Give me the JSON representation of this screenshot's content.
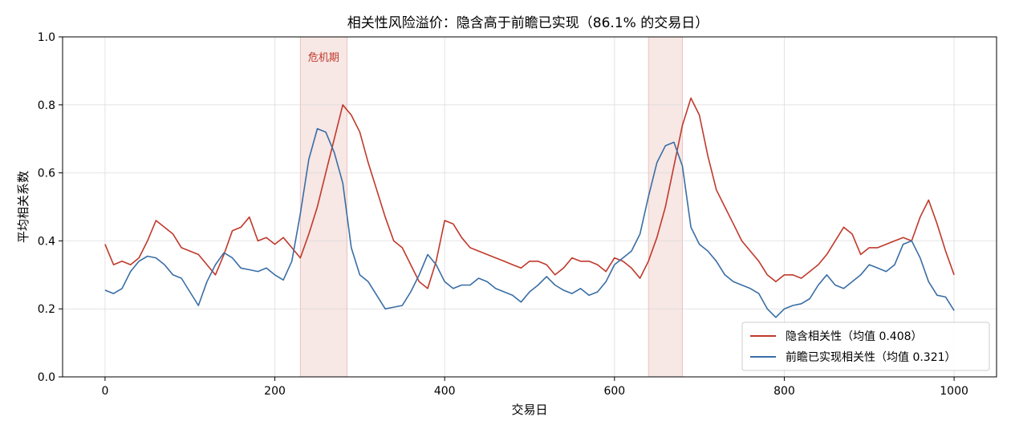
{
  "chart_data": {
    "type": "line",
    "title": "相关性风险溢价：隐含高于前瞻已实现（86.1% 的交易日）",
    "xlabel": "交易日",
    "ylabel": "平均相关系数",
    "xlim": [
      -50,
      1050
    ],
    "ylim": [
      0.0,
      1.0
    ],
    "xticks": [
      0,
      200,
      400,
      600,
      800,
      1000
    ],
    "xtick_labels": [
      "0",
      "200",
      "400",
      "600",
      "800",
      "1000"
    ],
    "yticks": [
      0.0,
      0.2,
      0.4,
      0.6,
      0.8,
      1.0
    ],
    "ytick_labels": [
      "0.0",
      "0.2",
      "0.4",
      "0.6",
      "0.8",
      "1.0"
    ],
    "grid": true,
    "legend_position": "lower-right",
    "shaded_regions": [
      {
        "x_start": 230,
        "x_end": 285,
        "label": "危机期",
        "color": "#c0392b"
      },
      {
        "x_start": 640,
        "x_end": 680,
        "label": "",
        "color": "#c0392b"
      }
    ],
    "series": [
      {
        "name": "隐含相关性（均值 0.408）",
        "color": "#c0392b",
        "x": [
          0,
          10,
          20,
          30,
          40,
          50,
          60,
          70,
          80,
          90,
          100,
          110,
          120,
          130,
          140,
          150,
          160,
          170,
          180,
          190,
          200,
          210,
          220,
          230,
          240,
          250,
          260,
          270,
          280,
          290,
          300,
          310,
          320,
          330,
          340,
          350,
          360,
          370,
          380,
          390,
          400,
          410,
          420,
          430,
          440,
          450,
          460,
          470,
          480,
          490,
          500,
          510,
          520,
          530,
          540,
          550,
          560,
          570,
          580,
          590,
          600,
          610,
          620,
          630,
          640,
          650,
          660,
          670,
          680,
          690,
          700,
          710,
          720,
          730,
          740,
          750,
          760,
          770,
          780,
          790,
          800,
          810,
          820,
          830,
          840,
          850,
          860,
          870,
          880,
          890,
          900,
          910,
          920,
          930,
          940,
          950,
          960,
          970,
          980,
          990,
          1000
        ],
        "values": [
          0.39,
          0.33,
          0.34,
          0.33,
          0.35,
          0.4,
          0.46,
          0.44,
          0.42,
          0.38,
          0.37,
          0.36,
          0.33,
          0.3,
          0.36,
          0.43,
          0.44,
          0.47,
          0.4,
          0.41,
          0.39,
          0.41,
          0.38,
          0.35,
          0.42,
          0.5,
          0.6,
          0.7,
          0.8,
          0.77,
          0.72,
          0.63,
          0.55,
          0.47,
          0.4,
          0.38,
          0.33,
          0.28,
          0.26,
          0.34,
          0.46,
          0.45,
          0.41,
          0.38,
          0.37,
          0.36,
          0.35,
          0.34,
          0.33,
          0.32,
          0.34,
          0.34,
          0.33,
          0.3,
          0.32,
          0.35,
          0.34,
          0.34,
          0.33,
          0.31,
          0.35,
          0.34,
          0.32,
          0.29,
          0.34,
          0.41,
          0.5,
          0.62,
          0.74,
          0.82,
          0.77,
          0.65,
          0.55,
          0.5,
          0.45,
          0.4,
          0.37,
          0.34,
          0.3,
          0.28,
          0.3,
          0.3,
          0.29,
          0.31,
          0.33,
          0.36,
          0.4,
          0.44,
          0.42,
          0.36,
          0.38,
          0.38,
          0.39,
          0.4,
          0.41,
          0.4,
          0.47,
          0.52,
          0.45,
          0.37,
          0.3
        ]
      },
      {
        "name": "前瞻已实现相关性（均值 0.321）",
        "color": "#3a6ea5",
        "x": [
          0,
          10,
          20,
          30,
          40,
          50,
          60,
          70,
          80,
          90,
          100,
          110,
          120,
          130,
          140,
          150,
          160,
          170,
          180,
          190,
          200,
          210,
          220,
          230,
          240,
          250,
          260,
          270,
          280,
          290,
          300,
          310,
          320,
          330,
          340,
          350,
          360,
          370,
          380,
          390,
          400,
          410,
          420,
          430,
          440,
          450,
          460,
          470,
          480,
          490,
          500,
          510,
          520,
          530,
          540,
          550,
          560,
          570,
          580,
          590,
          600,
          610,
          620,
          630,
          640,
          650,
          660,
          670,
          680,
          690,
          700,
          710,
          720,
          730,
          740,
          750,
          760,
          770,
          780,
          790,
          800,
          810,
          820,
          830,
          840,
          850,
          860,
          870,
          880,
          890,
          900,
          910,
          920,
          930,
          940,
          950,
          960,
          970,
          980,
          990,
          1000
        ],
        "values": [
          0.255,
          0.245,
          0.26,
          0.31,
          0.34,
          0.355,
          0.35,
          0.33,
          0.3,
          0.29,
          0.25,
          0.21,
          0.28,
          0.33,
          0.365,
          0.35,
          0.32,
          0.315,
          0.31,
          0.32,
          0.3,
          0.285,
          0.34,
          0.48,
          0.64,
          0.73,
          0.72,
          0.66,
          0.57,
          0.38,
          0.3,
          0.28,
          0.24,
          0.2,
          0.205,
          0.21,
          0.25,
          0.3,
          0.36,
          0.33,
          0.28,
          0.26,
          0.27,
          0.27,
          0.29,
          0.28,
          0.26,
          0.25,
          0.24,
          0.22,
          0.25,
          0.27,
          0.295,
          0.27,
          0.255,
          0.245,
          0.26,
          0.24,
          0.25,
          0.28,
          0.33,
          0.35,
          0.37,
          0.42,
          0.53,
          0.63,
          0.68,
          0.69,
          0.62,
          0.44,
          0.39,
          0.37,
          0.34,
          0.3,
          0.28,
          0.27,
          0.26,
          0.245,
          0.2,
          0.175,
          0.2,
          0.21,
          0.215,
          0.23,
          0.27,
          0.3,
          0.27,
          0.26,
          0.28,
          0.3,
          0.33,
          0.32,
          0.31,
          0.33,
          0.39,
          0.4,
          0.35,
          0.28,
          0.24,
          0.235,
          0.195
        ]
      }
    ]
  }
}
